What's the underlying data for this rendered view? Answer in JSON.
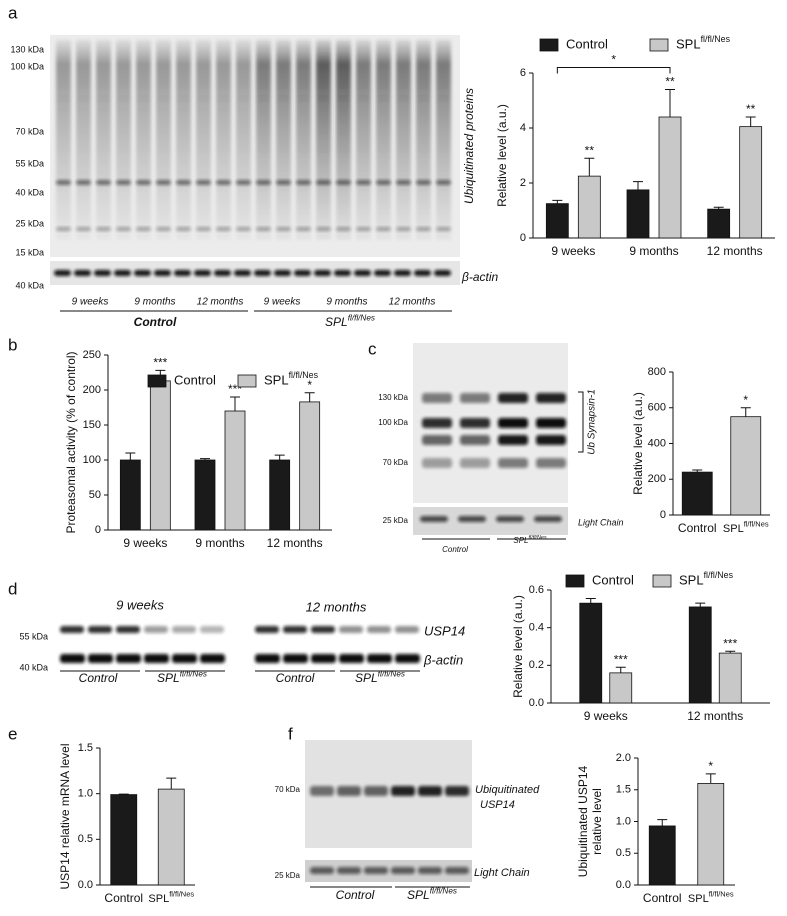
{
  "panel_labels": [
    "a",
    "b",
    "c",
    "d",
    "e",
    "f"
  ],
  "blots": {
    "a": {
      "markers": [
        "130 kDa",
        "100 kDa",
        "70 kDa",
        "55 kDa",
        "40 kDa",
        "25 kDa",
        "15 kDa"
      ],
      "loading_marker": "40 kDa",
      "target": "Ubiquitinated proteins",
      "loading": "β-actin",
      "timepoints": [
        "9 weeks",
        "9 months",
        "12 months",
        "9 weeks",
        "9 months",
        "12 months"
      ],
      "groups": [
        "Control",
        "SPL"
      ],
      "group_superscript": "fl/fl/Nes"
    },
    "c": {
      "markers": [
        "130 kDa",
        "100 kDa",
        "70 kDa"
      ],
      "loading_marker": "25 kDa",
      "target": "Ub Synapsin-1",
      "loading": "Light Chain",
      "groups": [
        "Control",
        "SPL"
      ],
      "group_superscript": "fl/fl/Nes"
    },
    "d": {
      "timepoints": [
        "9 weeks",
        "12 months"
      ],
      "markers": [
        "55 kDa",
        "40 kDa"
      ],
      "target": "USP14",
      "loading": "β-actin",
      "groups": [
        "Control",
        "SPL",
        "Control",
        "SPL"
      ],
      "group_superscript": "fl/fl/Nes"
    },
    "f": {
      "markers": [
        "70 kDa"
      ],
      "loading_marker": "25 kDa",
      "target": [
        "Ubiquitinated",
        "USP14"
      ],
      "loading": "Light Chain",
      "groups": [
        "Control",
        "SPL"
      ],
      "group_superscript": "fl/fl/Nes"
    }
  },
  "chart_data": [
    {
      "type": "bar",
      "y_label": [
        "Relative level (a.u.)"
      ],
      "categories": [
        "9 weeks",
        "9 months",
        "12 months"
      ],
      "series": [
        {
          "name": "Control",
          "color": "#1a1a1a",
          "values": [
            1.25,
            1.75,
            1.05
          ],
          "errors": [
            0.12,
            0.3,
            0.07
          ]
        },
        {
          "name": "SPL",
          "name_superscript": "fl/fl/Nes",
          "color": "#c8c8c8",
          "values": [
            2.25,
            4.4,
            4.05
          ],
          "errors": [
            0.65,
            1.0,
            0.35
          ],
          "annotations": [
            "**",
            "**",
            "**"
          ]
        }
      ],
      "bracket_label": "*",
      "ylim": [
        0,
        6
      ],
      "yticks": [
        0,
        2,
        4,
        6
      ]
    },
    {
      "type": "bar",
      "y_label": [
        "Proteasomal activity (% of control)"
      ],
      "categories": [
        "9 weeks",
        "9 months",
        "12 months"
      ],
      "series": [
        {
          "name": "Control",
          "color": "#1a1a1a",
          "values": [
            100,
            100,
            100
          ],
          "errors": [
            10,
            2,
            7
          ]
        },
        {
          "name": "SPL",
          "name_superscript": "fl/fl/Nes",
          "color": "#c8c8c8",
          "values": [
            213,
            170,
            183
          ],
          "errors": [
            15,
            20,
            13
          ],
          "annotations": [
            "***",
            "***",
            "*"
          ]
        }
      ],
      "ylim": [
        0,
        250
      ],
      "yticks": [
        0,
        50,
        100,
        150,
        200,
        250
      ]
    },
    {
      "type": "bar",
      "y_label": [
        "Relative level (a.u.)"
      ],
      "categories": [
        "Control",
        "SPL"
      ],
      "category_superscripts": [
        null,
        "fl/fl/Nes"
      ],
      "values": [
        240,
        550
      ],
      "errors": [
        12,
        50
      ],
      "colors": [
        "#1a1a1a",
        "#c8c8c8"
      ],
      "annotations": [
        null,
        "*"
      ],
      "ylim": [
        0,
        800
      ],
      "yticks": [
        0,
        200,
        400,
        600,
        800
      ]
    },
    {
      "type": "bar",
      "y_label": [
        "Relative level (a.u.)"
      ],
      "categories": [
        "9 weeks",
        "12 months"
      ],
      "series": [
        {
          "name": "Control",
          "color": "#1a1a1a",
          "values": [
            0.53,
            0.51
          ],
          "errors": [
            0.025,
            0.02
          ]
        },
        {
          "name": "SPL",
          "name_superscript": "fl/fl/Nes",
          "color": "#c8c8c8",
          "values": [
            0.16,
            0.265
          ],
          "errors": [
            0.03,
            0.01
          ],
          "annotations": [
            "***",
            "***"
          ]
        }
      ],
      "ylim": [
        0,
        0.6
      ],
      "yticks": [
        {
          "value": 0,
          "label": "0.0"
        },
        0.2,
        0.4,
        0.6
      ]
    },
    {
      "type": "bar",
      "y_label": [
        "USP14 relative mRNA level"
      ],
      "categories": [
        "Control",
        "SPL"
      ],
      "category_superscripts": [
        null,
        "fl/fl/Nes"
      ],
      "values": [
        0.99,
        1.05
      ],
      "errors": [
        0.005,
        0.12
      ],
      "colors": [
        "#1a1a1a",
        "#c8c8c8"
      ],
      "ylim": [
        0,
        1.5
      ],
      "yticks": [
        {
          "value": 0,
          "label": "0.0"
        },
        0.5,
        {
          "value": 1,
          "label": "1.0"
        },
        1.5
      ]
    },
    {
      "type": "bar",
      "y_label": [
        "Ubiquitinated USP14",
        "relative level"
      ],
      "categories": [
        "Control",
        "SPL"
      ],
      "category_superscripts": [
        null,
        "fl/fl/Nes"
      ],
      "values": [
        0.93,
        1.6
      ],
      "errors": [
        0.1,
        0.15
      ],
      "colors": [
        "#1a1a1a",
        "#c8c8c8"
      ],
      "annotations": [
        null,
        "*"
      ],
      "ylim": [
        0,
        2
      ],
      "yticks": [
        {
          "value": 0,
          "label": "0.0"
        },
        0.5,
        {
          "value": 1,
          "label": "1.0"
        },
        1.5,
        {
          "value": 2,
          "label": "2.0"
        }
      ]
    }
  ]
}
